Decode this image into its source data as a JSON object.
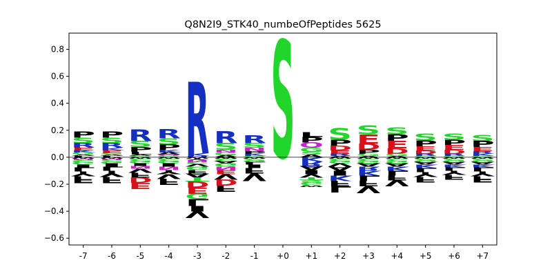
{
  "chart_data": {
    "type": "sequence-logo",
    "title": "Q8N2I9_STK40_numbeOfPeptides 5625",
    "xlabel": "",
    "ylabel": "",
    "ylim": [
      -0.65,
      0.92
    ],
    "yticks": [
      -0.6,
      -0.4,
      -0.2,
      0.0,
      0.2,
      0.4,
      0.6,
      0.8
    ],
    "ytick_labels": [
      "−0.6",
      "−0.4",
      "−0.2",
      "0.0",
      "0.2",
      "0.4",
      "0.6",
      "0.8"
    ],
    "categories": [
      "-7",
      "-6",
      "-5",
      "-4",
      "-3",
      "-2",
      "-1",
      "+0",
      "+1",
      "+2",
      "+3",
      "+4",
      "+5",
      "+6",
      "+7"
    ],
    "residue_colors": {
      "P": "#000000",
      "L": "#000000",
      "I": "#000000",
      "V": "#000000",
      "F": "#000000",
      "W": "#000000",
      "M": "#000000",
      "A": "#000000",
      "Y": "#000000",
      "S": "#22d52a",
      "T": "#22d52a",
      "G": "#22d52a",
      "C": "#22d52a",
      "R": "#1530c0",
      "K": "#1530c0",
      "H": "#1530c0",
      "E": "#d9101a",
      "D": "#d9101a",
      "N": "#cc22cc",
      "Q": "#cc22cc"
    },
    "positions": [
      {
        "pos": "-7",
        "positive": [
          {
            "aa": "P",
            "h": 0.045
          },
          {
            "aa": "S",
            "h": 0.04
          },
          {
            "aa": "R",
            "h": 0.035
          },
          {
            "aa": "E",
            "h": 0.02
          },
          {
            "aa": "K",
            "h": 0.015
          },
          {
            "aa": "G",
            "h": 0.015
          },
          {
            "aa": "A",
            "h": 0.01
          },
          {
            "aa": "L",
            "h": 0.01
          }
        ],
        "negative": [
          {
            "aa": "W",
            "h": 0.01
          },
          {
            "aa": "N",
            "h": 0.01
          },
          {
            "aa": "C",
            "h": 0.015
          },
          {
            "aa": "G",
            "h": 0.02
          },
          {
            "aa": "I",
            "h": 0.02
          },
          {
            "aa": "L",
            "h": 0.03
          },
          {
            "aa": "Y",
            "h": 0.035
          },
          {
            "aa": "F",
            "h": 0.05
          }
        ]
      },
      {
        "pos": "-6",
        "positive": [
          {
            "aa": "P",
            "h": 0.045
          },
          {
            "aa": "S",
            "h": 0.04
          },
          {
            "aa": "R",
            "h": 0.035
          },
          {
            "aa": "K",
            "h": 0.02
          },
          {
            "aa": "E",
            "h": 0.02
          },
          {
            "aa": "G",
            "h": 0.01
          },
          {
            "aa": "A",
            "h": 0.01
          },
          {
            "aa": "L",
            "h": 0.01
          }
        ],
        "negative": [
          {
            "aa": "W",
            "h": 0.01
          },
          {
            "aa": "N",
            "h": 0.01
          },
          {
            "aa": "C",
            "h": 0.01
          },
          {
            "aa": "G",
            "h": 0.015
          },
          {
            "aa": "I",
            "h": 0.025
          },
          {
            "aa": "L",
            "h": 0.03
          },
          {
            "aa": "Y",
            "h": 0.045
          },
          {
            "aa": "F",
            "h": 0.045
          }
        ]
      },
      {
        "pos": "-5",
        "positive": [
          {
            "aa": "R",
            "h": 0.085
          },
          {
            "aa": "S",
            "h": 0.045
          },
          {
            "aa": "P",
            "h": 0.035
          },
          {
            "aa": "L",
            "h": 0.02
          },
          {
            "aa": "A",
            "h": 0.01
          },
          {
            "aa": "G",
            "h": 0.01
          }
        ],
        "negative": [
          {
            "aa": "W",
            "h": 0.01
          },
          {
            "aa": "C",
            "h": 0.015
          },
          {
            "aa": "G",
            "h": 0.02
          },
          {
            "aa": "I",
            "h": 0.02
          },
          {
            "aa": "N",
            "h": 0.02
          },
          {
            "aa": "V",
            "h": 0.03
          },
          {
            "aa": "F",
            "h": 0.035
          },
          {
            "aa": "D",
            "h": 0.04
          },
          {
            "aa": "E",
            "h": 0.045
          }
        ]
      },
      {
        "pos": "-4",
        "positive": [
          {
            "aa": "R",
            "h": 0.07
          },
          {
            "aa": "S",
            "h": 0.045
          },
          {
            "aa": "P",
            "h": 0.04
          },
          {
            "aa": "K",
            "h": 0.02
          },
          {
            "aa": "A",
            "h": 0.015
          },
          {
            "aa": "Q",
            "h": 0.01
          },
          {
            "aa": "G",
            "h": 0.01
          }
        ],
        "negative": [
          {
            "aa": "W",
            "h": 0.01
          },
          {
            "aa": "C",
            "h": 0.015
          },
          {
            "aa": "G",
            "h": 0.02
          },
          {
            "aa": "I",
            "h": 0.025
          },
          {
            "aa": "N",
            "h": 0.025
          },
          {
            "aa": "Y",
            "h": 0.03
          },
          {
            "aa": "V",
            "h": 0.035
          },
          {
            "aa": "F",
            "h": 0.045
          }
        ]
      },
      {
        "pos": "-3",
        "positive": [
          {
            "aa": "R",
            "h": 0.53
          },
          {
            "aa": "K",
            "h": 0.02
          },
          {
            "aa": "H",
            "h": 0.01
          }
        ],
        "negative": [
          {
            "aa": "W",
            "h": 0.01
          },
          {
            "aa": "Y",
            "h": 0.01
          },
          {
            "aa": "N",
            "h": 0.015
          },
          {
            "aa": "C",
            "h": 0.015
          },
          {
            "aa": "V",
            "h": 0.02
          },
          {
            "aa": "G",
            "h": 0.025
          },
          {
            "aa": "F",
            "h": 0.025
          },
          {
            "aa": "A",
            "h": 0.03
          },
          {
            "aa": "T",
            "h": 0.03
          },
          {
            "aa": "D",
            "h": 0.045
          },
          {
            "aa": "E",
            "h": 0.045
          },
          {
            "aa": "G",
            "h": 0.04
          },
          {
            "aa": "L",
            "h": 0.05
          },
          {
            "aa": "I",
            "h": 0.04
          },
          {
            "aa": "V",
            "h": 0.05
          }
        ]
      },
      {
        "pos": "-2",
        "positive": [
          {
            "aa": "R",
            "h": 0.09
          },
          {
            "aa": "S",
            "h": 0.05
          },
          {
            "aa": "N",
            "h": 0.02
          },
          {
            "aa": "G",
            "h": 0.02
          },
          {
            "aa": "A",
            "h": 0.015
          }
        ],
        "negative": [
          {
            "aa": "W",
            "h": 0.01
          },
          {
            "aa": "C",
            "h": 0.015
          },
          {
            "aa": "A",
            "h": 0.02
          },
          {
            "aa": "G",
            "h": 0.025
          },
          {
            "aa": "N",
            "h": 0.025
          },
          {
            "aa": "E",
            "h": 0.03
          },
          {
            "aa": "V",
            "h": 0.04
          },
          {
            "aa": "D",
            "h": 0.045
          },
          {
            "aa": "F",
            "h": 0.045
          }
        ]
      },
      {
        "pos": "-1",
        "positive": [
          {
            "aa": "R",
            "h": 0.06
          },
          {
            "aa": "S",
            "h": 0.035
          },
          {
            "aa": "N",
            "h": 0.025
          },
          {
            "aa": "P",
            "h": 0.02
          },
          {
            "aa": "K",
            "h": 0.015
          },
          {
            "aa": "G",
            "h": 0.01
          }
        ],
        "negative": [
          {
            "aa": "W",
            "h": 0.01
          },
          {
            "aa": "C",
            "h": 0.01
          },
          {
            "aa": "G",
            "h": 0.015
          },
          {
            "aa": "L",
            "h": 0.02
          },
          {
            "aa": "I",
            "h": 0.025
          },
          {
            "aa": "F",
            "h": 0.04
          },
          {
            "aa": "V",
            "h": 0.055
          }
        ]
      },
      {
        "pos": "+0",
        "positive": [
          {
            "aa": "S",
            "h": 0.87
          }
        ],
        "negative": []
      },
      {
        "pos": "+1",
        "positive": [
          {
            "aa": "L",
            "h": 0.035
          },
          {
            "aa": "P",
            "h": 0.04
          },
          {
            "aa": "Q",
            "h": 0.04
          },
          {
            "aa": "G",
            "h": 0.03
          },
          {
            "aa": "S",
            "h": 0.02
          },
          {
            "aa": "A",
            "h": 0.02
          }
        ],
        "negative": [
          {
            "aa": "K",
            "h": 0.03
          },
          {
            "aa": "R",
            "h": 0.035
          },
          {
            "aa": "A",
            "h": 0.03
          },
          {
            "aa": "I",
            "h": 0.03
          },
          {
            "aa": "V",
            "h": 0.025
          },
          {
            "aa": "T",
            "h": 0.02
          },
          {
            "aa": "S",
            "h": 0.015
          },
          {
            "aa": "G",
            "h": 0.015
          },
          {
            "aa": "C",
            "h": 0.01
          },
          {
            "aa": "W",
            "h": 0.01
          }
        ]
      },
      {
        "pos": "+2",
        "positive": [
          {
            "aa": "S",
            "h": 0.085
          },
          {
            "aa": "P",
            "h": 0.045
          },
          {
            "aa": "D",
            "h": 0.035
          },
          {
            "aa": "E",
            "h": 0.025
          },
          {
            "aa": "R",
            "h": 0.015
          },
          {
            "aa": "A",
            "h": 0.01
          }
        ],
        "negative": [
          {
            "aa": "W",
            "h": 0.01
          },
          {
            "aa": "C",
            "h": 0.015
          },
          {
            "aa": "G",
            "h": 0.02
          },
          {
            "aa": "V",
            "h": 0.025
          },
          {
            "aa": "A",
            "h": 0.03
          },
          {
            "aa": "I",
            "h": 0.035
          },
          {
            "aa": "K",
            "h": 0.04
          },
          {
            "aa": "F",
            "h": 0.04
          },
          {
            "aa": "L",
            "h": 0.045
          }
        ]
      },
      {
        "pos": "+3",
        "positive": [
          {
            "aa": "S",
            "h": 0.065
          },
          {
            "aa": "E",
            "h": 0.07
          },
          {
            "aa": "D",
            "h": 0.045
          },
          {
            "aa": "P",
            "h": 0.03
          },
          {
            "aa": "G",
            "h": 0.015
          },
          {
            "aa": "A",
            "h": 0.01
          }
        ],
        "negative": [
          {
            "aa": "W",
            "h": 0.01
          },
          {
            "aa": "C",
            "h": 0.015
          },
          {
            "aa": "G",
            "h": 0.02
          },
          {
            "aa": "A",
            "h": 0.025
          },
          {
            "aa": "R",
            "h": 0.03
          },
          {
            "aa": "K",
            "h": 0.035
          },
          {
            "aa": "L",
            "h": 0.04
          },
          {
            "aa": "F",
            "h": 0.04
          },
          {
            "aa": "V",
            "h": 0.05
          }
        ]
      },
      {
        "pos": "+4",
        "positive": [
          {
            "aa": "S",
            "h": 0.05
          },
          {
            "aa": "P",
            "h": 0.05
          },
          {
            "aa": "E",
            "h": 0.055
          },
          {
            "aa": "D",
            "h": 0.04
          },
          {
            "aa": "G",
            "h": 0.015
          },
          {
            "aa": "A",
            "h": 0.01
          }
        ],
        "negative": [
          {
            "aa": "W",
            "h": 0.01
          },
          {
            "aa": "C",
            "h": 0.015
          },
          {
            "aa": "G",
            "h": 0.02
          },
          {
            "aa": "A",
            "h": 0.025
          },
          {
            "aa": "K",
            "h": 0.03
          },
          {
            "aa": "L",
            "h": 0.035
          },
          {
            "aa": "F",
            "h": 0.035
          },
          {
            "aa": "V",
            "h": 0.045
          }
        ]
      },
      {
        "pos": "+5",
        "positive": [
          {
            "aa": "S",
            "h": 0.05
          },
          {
            "aa": "P",
            "h": 0.045
          },
          {
            "aa": "E",
            "h": 0.03
          },
          {
            "aa": "D",
            "h": 0.025
          },
          {
            "aa": "R",
            "h": 0.015
          },
          {
            "aa": "G",
            "h": 0.01
          }
        ],
        "negative": [
          {
            "aa": "W",
            "h": 0.01
          },
          {
            "aa": "C",
            "h": 0.01
          },
          {
            "aa": "G",
            "h": 0.015
          },
          {
            "aa": "A",
            "h": 0.02
          },
          {
            "aa": "K",
            "h": 0.025
          },
          {
            "aa": "L",
            "h": 0.03
          },
          {
            "aa": "Y",
            "h": 0.035
          },
          {
            "aa": "F",
            "h": 0.04
          }
        ]
      },
      {
        "pos": "+6",
        "positive": [
          {
            "aa": "S",
            "h": 0.045
          },
          {
            "aa": "P",
            "h": 0.04
          },
          {
            "aa": "E",
            "h": 0.035
          },
          {
            "aa": "D",
            "h": 0.03
          },
          {
            "aa": "R",
            "h": 0.015
          },
          {
            "aa": "G",
            "h": 0.01
          }
        ],
        "negative": [
          {
            "aa": "W",
            "h": 0.01
          },
          {
            "aa": "C",
            "h": 0.01
          },
          {
            "aa": "G",
            "h": 0.015
          },
          {
            "aa": "A",
            "h": 0.02
          },
          {
            "aa": "K",
            "h": 0.02
          },
          {
            "aa": "L",
            "h": 0.025
          },
          {
            "aa": "Y",
            "h": 0.03
          },
          {
            "aa": "F",
            "h": 0.035
          }
        ]
      },
      {
        "pos": "+7",
        "positive": [
          {
            "aa": "S",
            "h": 0.045
          },
          {
            "aa": "P",
            "h": 0.045
          },
          {
            "aa": "E",
            "h": 0.03
          },
          {
            "aa": "R",
            "h": 0.02
          },
          {
            "aa": "K",
            "h": 0.015
          },
          {
            "aa": "G",
            "h": 0.01
          }
        ],
        "negative": [
          {
            "aa": "W",
            "h": 0.01
          },
          {
            "aa": "C",
            "h": 0.01
          },
          {
            "aa": "G",
            "h": 0.015
          },
          {
            "aa": "A",
            "h": 0.02
          },
          {
            "aa": "K",
            "h": 0.02
          },
          {
            "aa": "L",
            "h": 0.03
          },
          {
            "aa": "Y",
            "h": 0.035
          },
          {
            "aa": "F",
            "h": 0.045
          }
        ]
      }
    ]
  }
}
